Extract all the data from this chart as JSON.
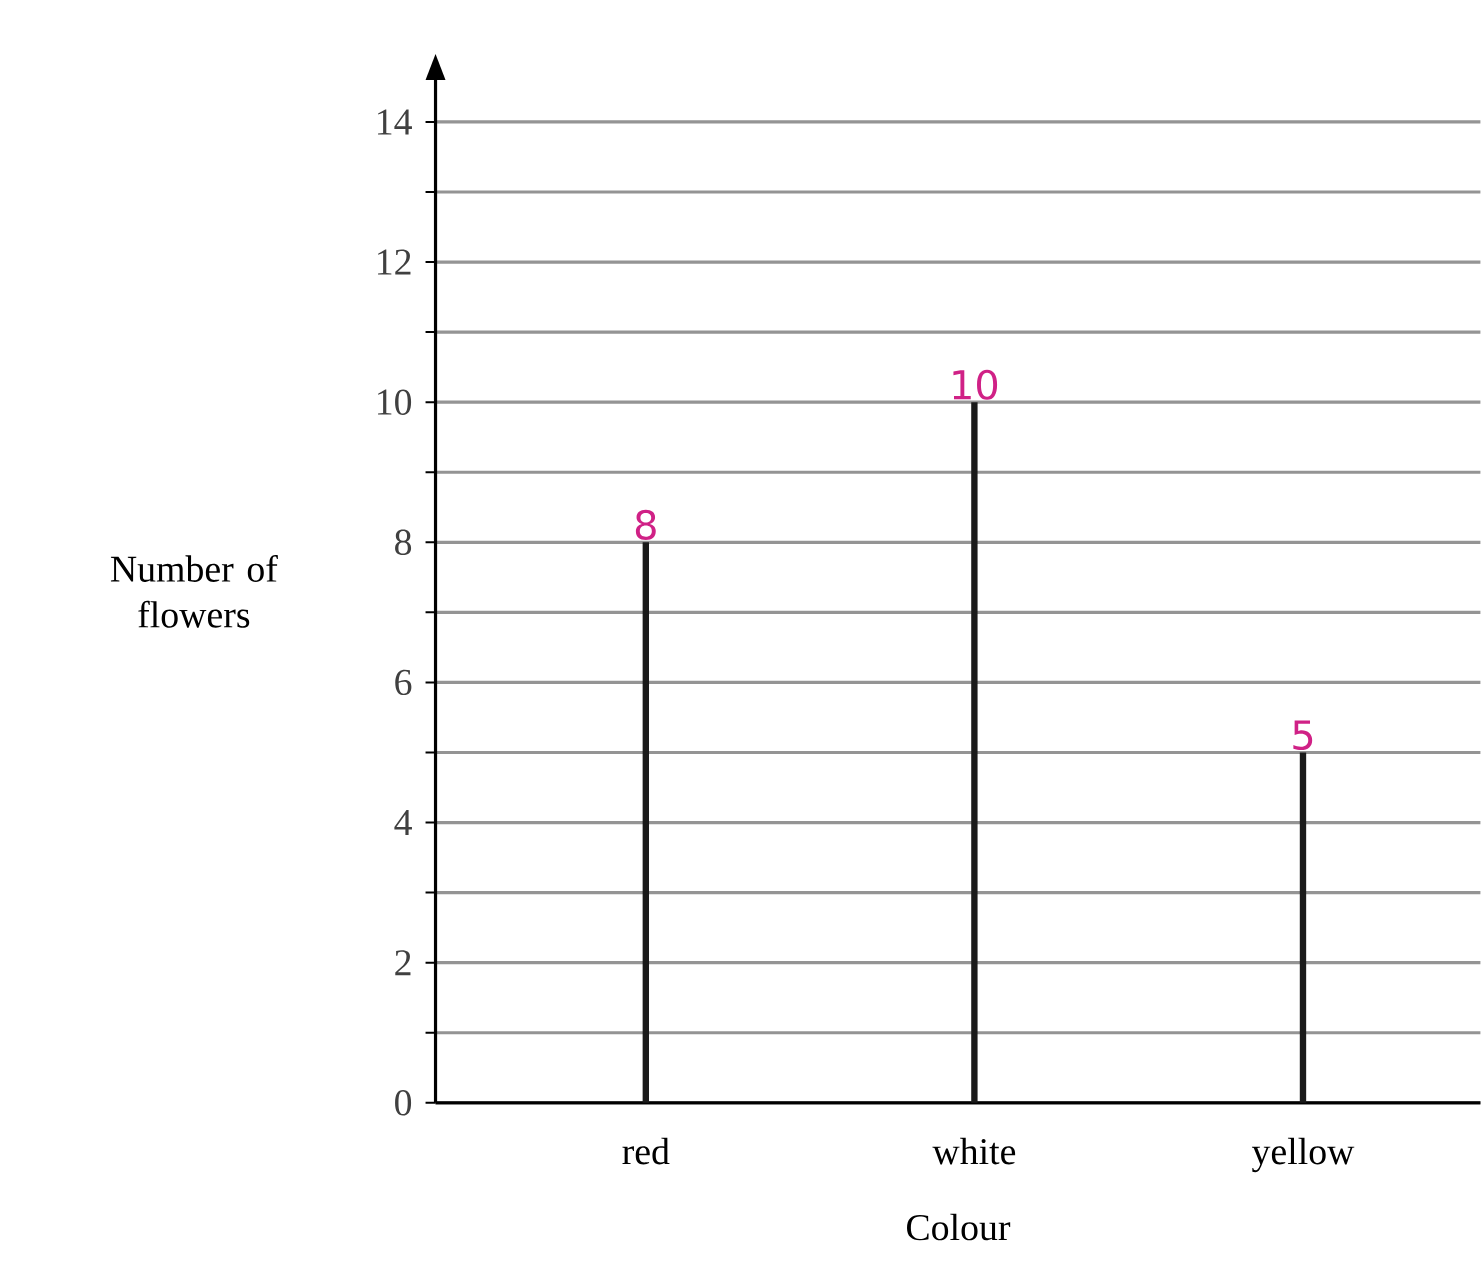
{
  "chart_data": {
    "type": "bar",
    "xlabel": "Colour",
    "ylabel": "Number of flowers",
    "categories": [
      "red",
      "white",
      "yellow"
    ],
    "values": [
      8,
      10,
      5
    ],
    "color": "#1a1a1a",
    "ylim": [
      0,
      14.6
    ],
    "yticks": [
      0,
      {
        "value": 1,
        "label": null
      },
      2,
      {
        "value": 3,
        "label": null
      },
      4,
      {
        "value": 5,
        "label": null
      },
      6,
      {
        "value": 7,
        "label": null
      },
      8,
      {
        "value": 9,
        "label": null
      },
      10,
      {
        "value": 11,
        "label": null
      },
      12,
      {
        "value": 13,
        "label": null
      },
      14
    ],
    "grid": "y",
    "data_labels": true
  }
}
